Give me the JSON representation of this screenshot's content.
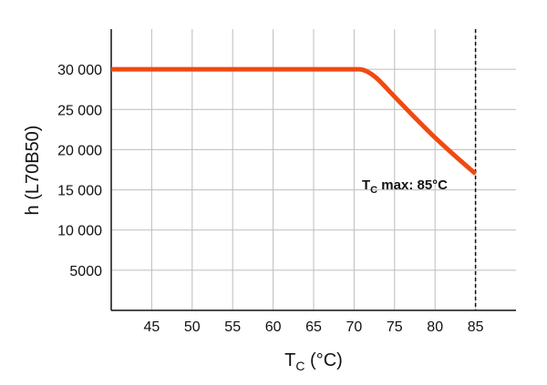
{
  "chart_data": {
    "type": "line",
    "x": [
      40,
      45,
      50,
      55,
      60,
      65,
      70,
      71,
      72,
      73,
      75,
      77.5,
      80,
      82.5,
      85
    ],
    "y": [
      30000,
      30000,
      30000,
      30000,
      30000,
      30000,
      30000,
      29950,
      29500,
      28700,
      26600,
      24000,
      21500,
      19200,
      17000
    ],
    "xlabel": {
      "main": "T",
      "sub": "C",
      "unit": " (°C)"
    },
    "ylabel": "h (L70B50)",
    "xlim": [
      40,
      90
    ],
    "ylim": [
      0,
      35000
    ],
    "xticks": [
      45,
      50,
      55,
      60,
      65,
      70,
      75,
      80,
      85
    ],
    "xtick_labels": [
      "45",
      "50",
      "55",
      "60",
      "65",
      "70",
      "75",
      "80",
      "85"
    ],
    "yticks": [
      5000,
      10000,
      15000,
      20000,
      25000,
      30000
    ],
    "ytick_labels": [
      "5000",
      "10 000",
      "15 000",
      "20 000",
      "25 000",
      "30 000"
    ],
    "grid": true,
    "vline": {
      "x": 85,
      "style": "dashed"
    },
    "annotation": {
      "main": "T",
      "sub": "C",
      "rest": " max: 85°C",
      "x": 85,
      "y": 17000
    },
    "colors": {
      "series": "#ef4a12",
      "grid": "#bdbdbd",
      "axis": "#111111"
    }
  }
}
